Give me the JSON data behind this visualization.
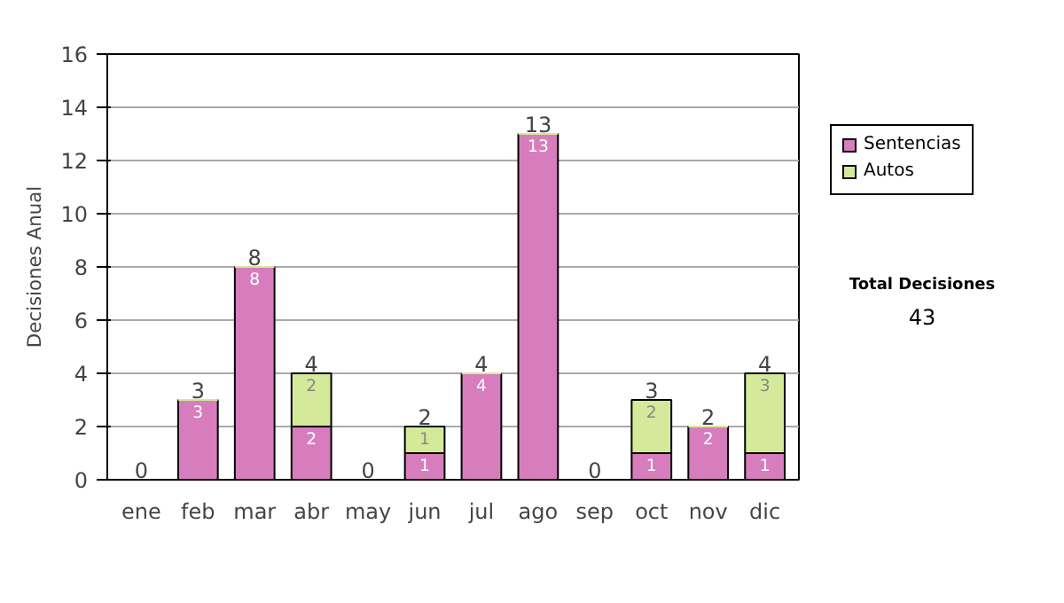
{
  "chart_data": {
    "type": "bar",
    "stacked": true,
    "ylabel": "Decisiones Anual",
    "categories": [
      "ene",
      "feb",
      "mar",
      "abr",
      "may",
      "jun",
      "jul",
      "ago",
      "sep",
      "oct",
      "nov",
      "dic"
    ],
    "series": [
      {
        "name": "Sentencias",
        "color": "#d77dbe",
        "values": [
          0,
          3,
          8,
          2,
          0,
          1,
          4,
          13,
          0,
          1,
          2,
          1
        ],
        "value_labels": [
          null,
          "3",
          "8",
          "2",
          null,
          "1",
          "4",
          "13",
          null,
          "1",
          "2",
          "1"
        ]
      },
      {
        "name": "Autos",
        "color": "#d4ea9a",
        "values": [
          0,
          0,
          0,
          2,
          0,
          1,
          0,
          0,
          0,
          2,
          0,
          3
        ],
        "value_labels": [
          null,
          null,
          null,
          "2",
          null,
          "1",
          null,
          null,
          null,
          "2",
          null,
          "3"
        ]
      }
    ],
    "totals": [
      "0",
      "3",
      "8",
      "4",
      "0",
      "2",
      "4",
      "13",
      "0",
      "3",
      "2",
      "4"
    ],
    "ylim": [
      0,
      16
    ],
    "yticks": [
      0,
      2,
      4,
      6,
      8,
      10,
      12,
      14,
      16
    ],
    "grid": "y",
    "legend": "right",
    "annotations": [
      "Total Decisiones",
      "43"
    ]
  }
}
